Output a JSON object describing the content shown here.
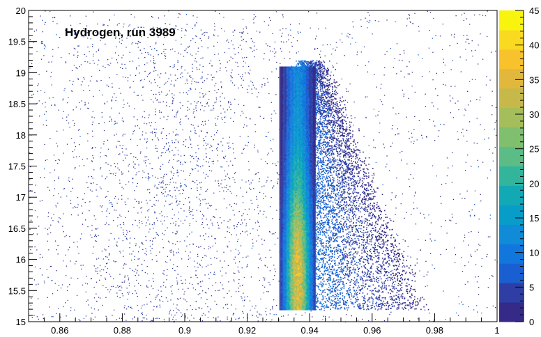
{
  "chart_data": {
    "type": "heatmap",
    "title": "Hydrogen, run 3989",
    "xlabel": "",
    "ylabel": "",
    "xlim": [
      0.85,
      1.0
    ],
    "ylim": [
      15,
      20
    ],
    "x_ticks": [
      "0.86",
      "0.88",
      "0.9",
      "0.92",
      "0.94",
      "0.96",
      "0.98",
      "1"
    ],
    "y_ticks": [
      "15",
      "15.5",
      "16",
      "16.5",
      "17",
      "17.5",
      "18",
      "18.5",
      "19",
      "19.5",
      "20"
    ],
    "grid": false,
    "colorbar": {
      "range": [
        0,
        45
      ],
      "ticks": [
        "0",
        "5",
        "10",
        "15",
        "20",
        "25",
        "30",
        "35",
        "40",
        "45"
      ],
      "colors": [
        "#352a87",
        "#2e3ea5",
        "#1a5fd2",
        "#1277dc",
        "#0f8bd8",
        "#089dc9",
        "#12a9b4",
        "#33b59c",
        "#5bbc85",
        "#80bf6e",
        "#a5bd5a",
        "#c6b94a",
        "#e2b83c",
        "#f8c22c",
        "#f9da21",
        "#f9f40e"
      ]
    },
    "density_features": {
      "background": {
        "x_range": [
          0.85,
          1.0
        ],
        "y_range": [
          15.0,
          20.0
        ],
        "level": "very low, scattered (0-2)"
      },
      "main_band": {
        "x_center": 0.936,
        "x_width": 0.003,
        "y_range": [
          15.2,
          19.1
        ],
        "peak_level": 35,
        "peak_y": 15.7
      },
      "right_wedge": {
        "x_start": 0.937,
        "x_end_at_y15": 0.978,
        "x_end_at_y19": 0.945,
        "y_range": [
          15.2,
          19.2
        ],
        "level": "low to medium (1-10)"
      }
    }
  }
}
